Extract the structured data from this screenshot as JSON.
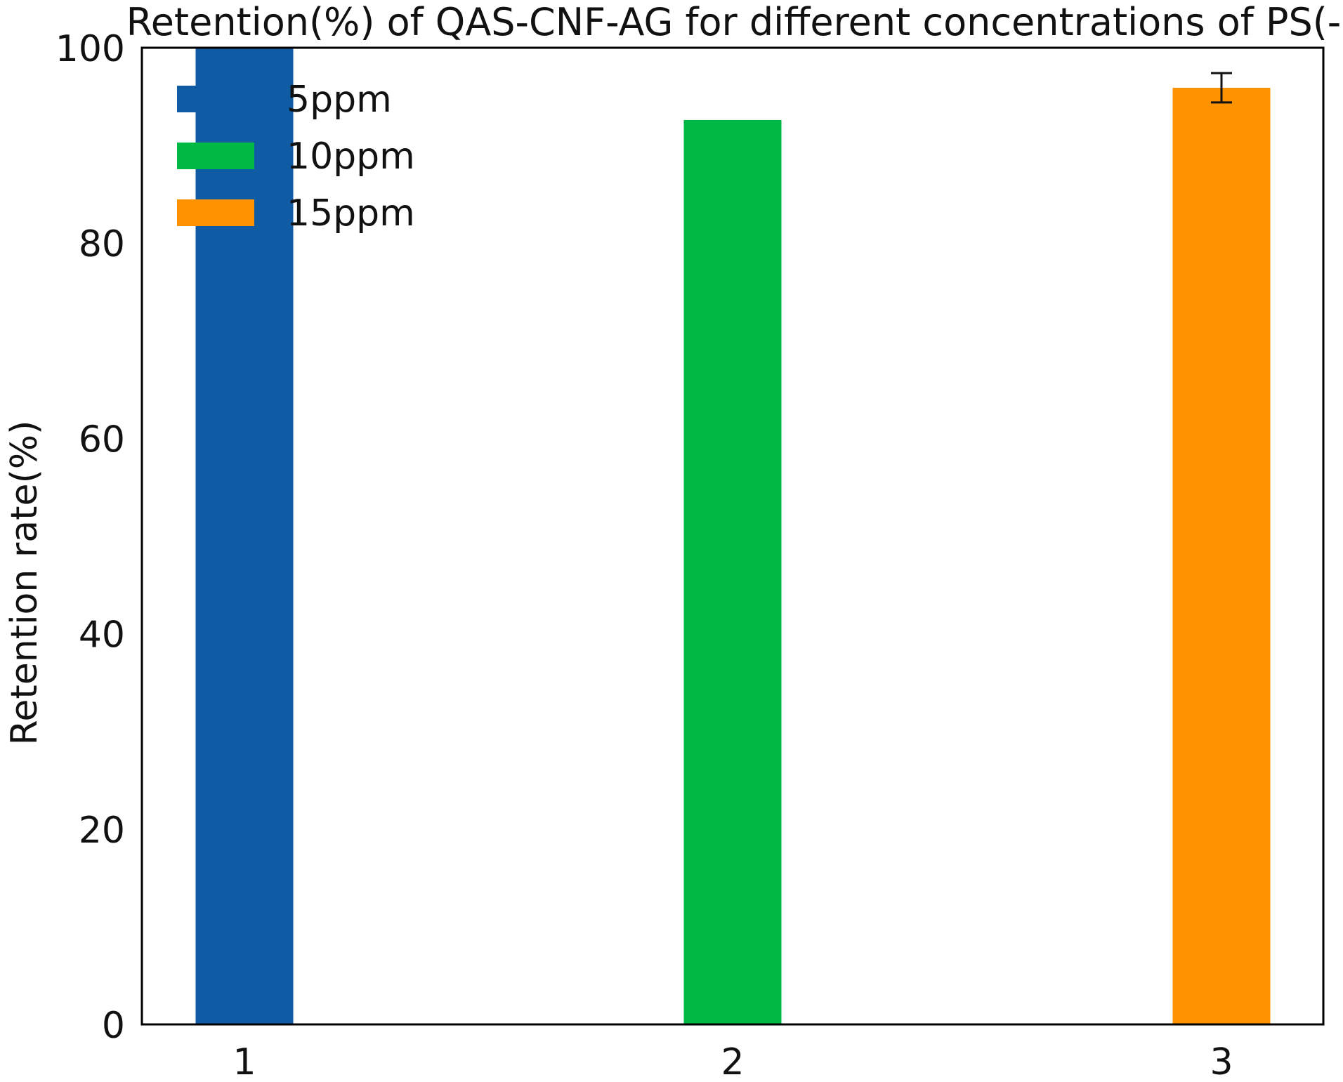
{
  "chart_data": {
    "type": "bar",
    "title": "Retention(%) of QAS-CNF-AG for different concentrations of PS(-)",
    "xlabel": "",
    "ylabel": "Retention rate(%)",
    "categories": [
      "1",
      "2",
      "3"
    ],
    "ylim": [
      0,
      100
    ],
    "yticks": [
      "0",
      "20",
      "40",
      "60",
      "80",
      "100"
    ],
    "grid": false,
    "legend_position": "top-left",
    "series": [
      {
        "name": "5ppm",
        "category": "1",
        "value": 100.0,
        "error": null,
        "color": "#0f5ca5"
      },
      {
        "name": "10ppm",
        "category": "2",
        "value": 92.6,
        "error": null,
        "color": "#00b944"
      },
      {
        "name": "15ppm",
        "category": "3",
        "value": 95.9,
        "error": 1.5,
        "color": "#fe9200"
      }
    ]
  }
}
